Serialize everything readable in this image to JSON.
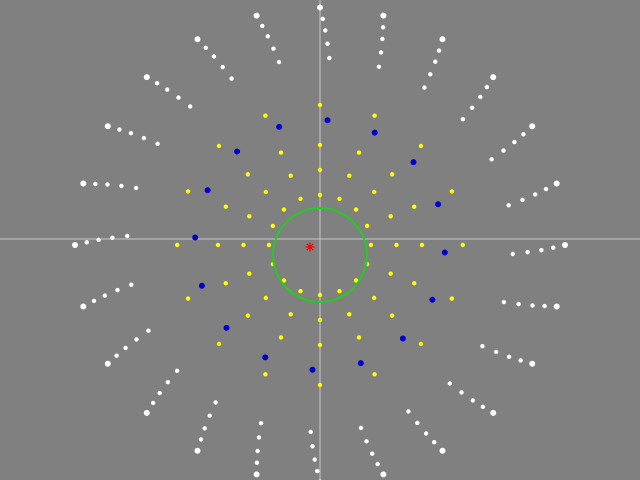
{
  "colors": {
    "background": "#808080",
    "crosshair": "#c8c8c8",
    "outer_dots": "#ffffff",
    "yellow_dots": "#ffff00",
    "blue_dots": "#0000cc",
    "circle": "#22cc22",
    "marker": "#ff0000"
  },
  "pattern": {
    "outer_rays": 24,
    "dots_per_outer_ray": 5,
    "yellow_rays": 16,
    "yellow_rings": 4,
    "blue_dots": 16
  }
}
